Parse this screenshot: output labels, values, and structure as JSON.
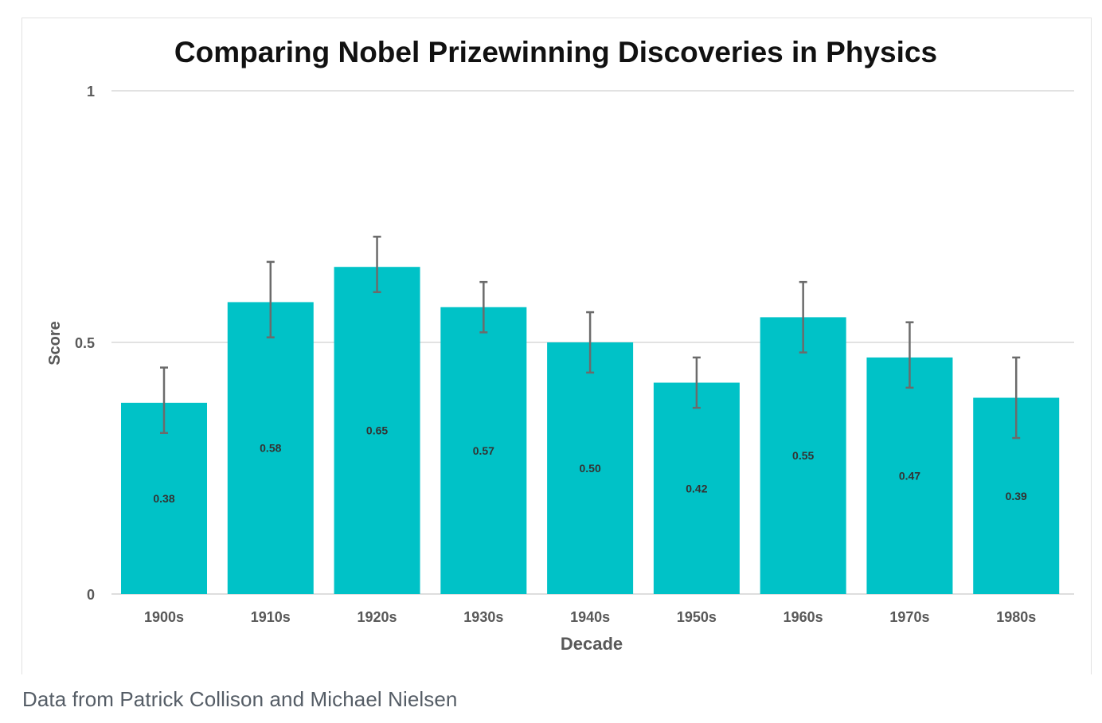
{
  "caption": "Data from Patrick Collison and Michael Nielsen",
  "chart_data": {
    "type": "bar",
    "title": "Comparing Nobel Prizewinning Discoveries in Physics",
    "xlabel": "Decade",
    "ylabel": "Score",
    "ylim": [
      0,
      1
    ],
    "yticks": [
      0,
      0.5,
      1
    ],
    "ytick_labels": [
      "0",
      "0.5",
      "1"
    ],
    "grid": true,
    "categories": [
      "1900s",
      "1910s",
      "1920s",
      "1930s",
      "1940s",
      "1950s",
      "1960s",
      "1970s",
      "1980s"
    ],
    "values": [
      0.38,
      0.58,
      0.65,
      0.57,
      0.5,
      0.42,
      0.55,
      0.47,
      0.39
    ],
    "value_labels": [
      "0.38",
      "0.58",
      "0.65",
      "0.57",
      "0.50",
      "0.42",
      "0.55",
      "0.47",
      "0.39"
    ],
    "error_low": [
      0.32,
      0.51,
      0.6,
      0.52,
      0.44,
      0.37,
      0.48,
      0.41,
      0.31
    ],
    "error_high": [
      0.45,
      0.66,
      0.71,
      0.62,
      0.56,
      0.47,
      0.62,
      0.54,
      0.47
    ],
    "colors": {
      "bar": "#00c2c7",
      "error": "#6b6b6b",
      "grid": "#d9d9d9",
      "text": "#595959",
      "title": "#111111"
    }
  }
}
